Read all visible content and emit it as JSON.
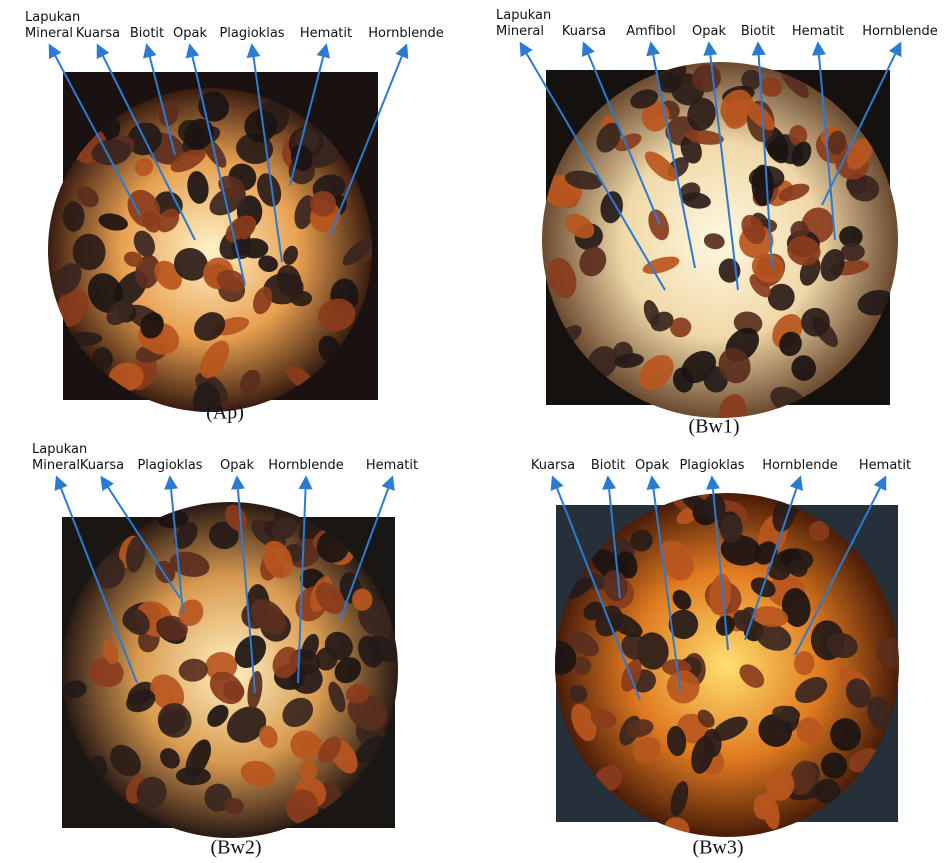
{
  "panels": [
    {
      "caption": "(Ap)",
      "labels": [
        "Lapukan Mineral",
        "Kuarsa",
        "Biotit",
        "Opak",
        "Plagioklas",
        "Hematit",
        "Hornblende"
      ]
    },
    {
      "caption": "(Bw1)",
      "labels": [
        "Lapukan Mineral",
        "Kuarsa",
        "Amfibol",
        "Opak",
        "Biotit",
        "Hematit",
        "Hornblende"
      ]
    },
    {
      "caption": "(Bw2)",
      "labels": [
        "Lapukan Mineral",
        "Kuarsa",
        "Plagioklas",
        "Opak",
        "Hornblende",
        "Hematit"
      ]
    },
    {
      "caption": "(Bw3)",
      "labels": [
        "Kuarsa",
        "Biotit",
        "Opak",
        "Plagioklas",
        "Hornblende",
        "Hematit"
      ]
    }
  ]
}
